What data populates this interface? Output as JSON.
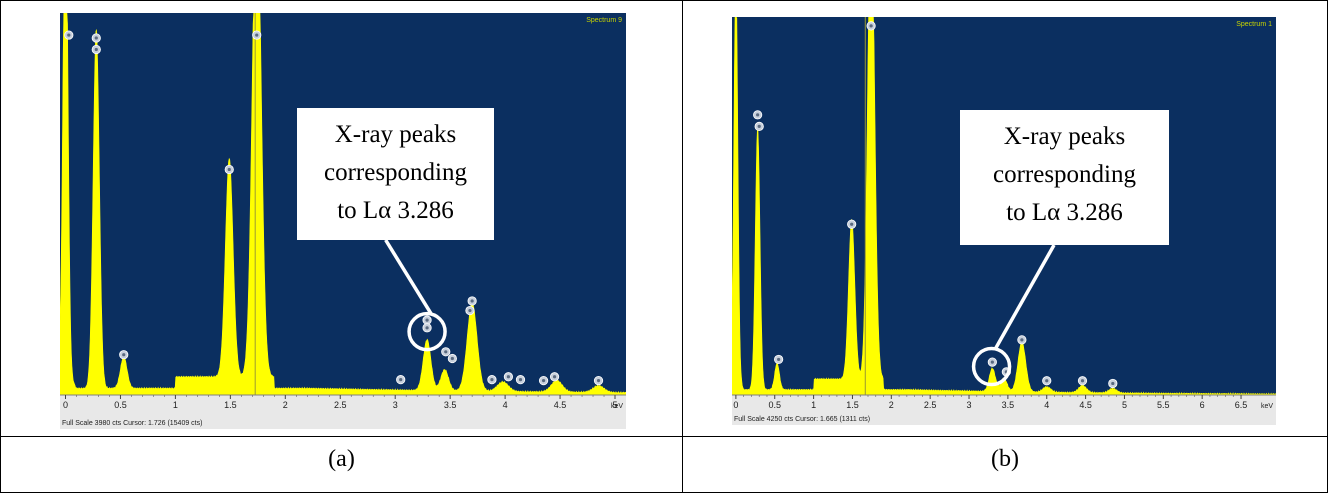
{
  "panels": [
    {
      "id": "a",
      "caption": "(a)",
      "chart_data": {
        "type": "line",
        "title": "Spectrum 9",
        "xlabel": "keV",
        "xlim": [
          -0.05,
          5.1
        ],
        "x_ticks": [
          "0",
          "0.5",
          "1",
          "1.5",
          "2",
          "2.5",
          "3",
          "3.5",
          "4",
          "4.5",
          "5"
        ],
        "x_tick_values": [
          0,
          0.5,
          1,
          1.5,
          2,
          2.5,
          3,
          3.5,
          4,
          4.5,
          5
        ],
        "ylim": [
          0,
          3980
        ],
        "footer": "Full Scale 3980 cts Cursor: 1.726  (15409 cts)",
        "cursor_kev": 1.726,
        "baseline": 70,
        "peaks": [
          {
            "x": 0.0,
            "h": 5200,
            "w": 0.022
          },
          {
            "x": 0.28,
            "h": 3750,
            "w": 0.028
          },
          {
            "x": 0.53,
            "h": 330,
            "w": 0.03
          },
          {
            "x": 1.49,
            "h": 2280,
            "w": 0.035
          },
          {
            "x": 1.74,
            "h": 5200,
            "w": 0.04
          },
          {
            "x": 3.29,
            "h": 530,
            "w": 0.035
          },
          {
            "x": 3.45,
            "h": 220,
            "w": 0.035
          },
          {
            "x": 3.7,
            "h": 920,
            "w": 0.045
          },
          {
            "x": 3.98,
            "h": 100,
            "w": 0.05
          },
          {
            "x": 4.47,
            "h": 120,
            "w": 0.05
          },
          {
            "x": 4.85,
            "h": 70,
            "w": 0.05
          }
        ],
        "markers": [
          {
            "x": 0.03,
            "y": 3750
          },
          {
            "x": 0.28,
            "y": 3720
          },
          {
            "x": 0.28,
            "y": 3600
          },
          {
            "x": 0.53,
            "y": 420
          },
          {
            "x": 1.49,
            "y": 2350
          },
          {
            "x": 1.74,
            "y": 3750
          },
          {
            "x": 3.05,
            "y": 160
          },
          {
            "x": 3.29,
            "y": 780
          },
          {
            "x": 3.29,
            "y": 700
          },
          {
            "x": 3.46,
            "y": 450
          },
          {
            "x": 3.52,
            "y": 380
          },
          {
            "x": 3.7,
            "y": 980
          },
          {
            "x": 3.68,
            "y": 880
          },
          {
            "x": 3.88,
            "y": 160
          },
          {
            "x": 4.03,
            "y": 190
          },
          {
            "x": 4.14,
            "y": 160
          },
          {
            "x": 4.35,
            "y": 150
          },
          {
            "x": 4.45,
            "y": 190
          },
          {
            "x": 4.85,
            "y": 150
          }
        ],
        "annotation": {
          "lines": [
            "X-ray peaks",
            "corresponding",
            "to Lα 3.286"
          ],
          "circle_x": 3.29,
          "circle_y": 660
        },
        "colors": {
          "background": "#0b2f60",
          "fill": "#ffff00",
          "axis_band": "#e8e8e8"
        }
      }
    },
    {
      "id": "b",
      "caption": "(b)",
      "chart_data": {
        "type": "line",
        "title": "Spectrum 1",
        "xlabel": "keV",
        "xlim": [
          -0.05,
          6.95
        ],
        "x_ticks": [
          "0",
          "0.5",
          "1",
          "1.5",
          "2",
          "2.5",
          "3",
          "3.5",
          "4",
          "4.5",
          "5",
          "5.5",
          "6",
          "6.5"
        ],
        "x_tick_values": [
          0,
          0.5,
          1,
          1.5,
          2,
          2.5,
          3,
          3.5,
          4,
          4.5,
          5,
          5.5,
          6,
          6.5
        ],
        "ylim": [
          0,
          4250
        ],
        "footer": "Full Scale 4250 cts Cursor: 1.665  (1311 cts)",
        "cursor_kev": 1.665,
        "baseline": 60,
        "peaks": [
          {
            "x": 0.0,
            "h": 4500,
            "w": 0.025
          },
          {
            "x": 0.28,
            "h": 2950,
            "w": 0.03
          },
          {
            "x": 0.53,
            "h": 300,
            "w": 0.03
          },
          {
            "x": 1.49,
            "h": 1800,
            "w": 0.04
          },
          {
            "x": 1.74,
            "h": 5400,
            "w": 0.045
          },
          {
            "x": 3.3,
            "h": 260,
            "w": 0.04
          },
          {
            "x": 3.45,
            "h": 150,
            "w": 0.04
          },
          {
            "x": 3.68,
            "h": 560,
            "w": 0.05
          },
          {
            "x": 4.0,
            "h": 60,
            "w": 0.05
          },
          {
            "x": 4.46,
            "h": 80,
            "w": 0.05
          },
          {
            "x": 4.85,
            "h": 50,
            "w": 0.05
          }
        ],
        "markers": [
          {
            "x": 0.28,
            "y": 3150
          },
          {
            "x": 0.3,
            "y": 3020
          },
          {
            "x": 0.55,
            "y": 400
          },
          {
            "x": 1.49,
            "y": 1920
          },
          {
            "x": 1.74,
            "y": 4150
          },
          {
            "x": 3.3,
            "y": 370
          },
          {
            "x": 3.48,
            "y": 260
          },
          {
            "x": 3.68,
            "y": 620
          },
          {
            "x": 4.0,
            "y": 160
          },
          {
            "x": 4.46,
            "y": 160
          },
          {
            "x": 4.85,
            "y": 130
          }
        ],
        "annotation": {
          "lines": [
            "X-ray peaks",
            "corresponding",
            "to Lα 3.286"
          ],
          "circle_x": 3.29,
          "circle_y": 320
        },
        "colors": {
          "background": "#0b2f60",
          "fill": "#ffff00",
          "axis_band": "#e8e8e8"
        }
      }
    }
  ]
}
